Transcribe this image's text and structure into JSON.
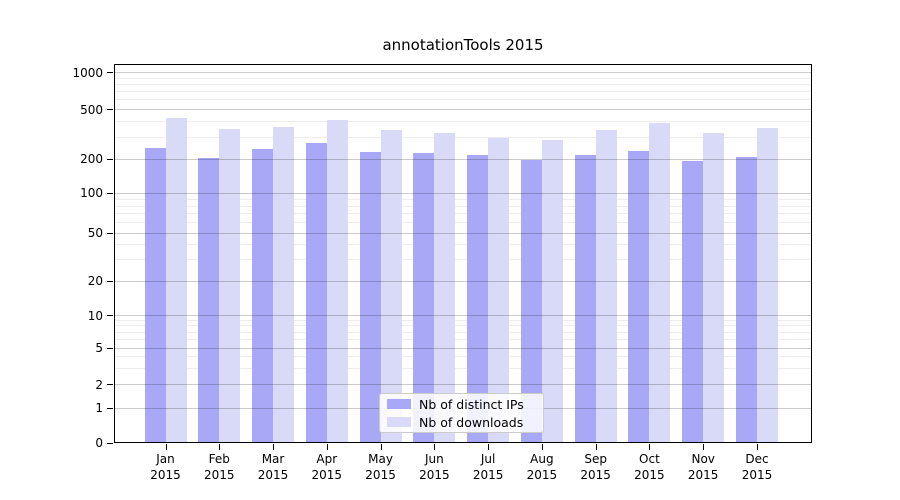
{
  "title": "annotationTools 2015",
  "colors": {
    "distinct_ips": "#a8a8f6",
    "downloads": "#d9d9f8",
    "axis": "#000000",
    "grid_major": "#cccccc",
    "grid_minor": "#ececec",
    "legend_border": "#cccccc"
  },
  "legend": {
    "items": [
      {
        "label": "Nb of distinct IPs",
        "series": "distinct_ips"
      },
      {
        "label": "Nb of downloads",
        "series": "downloads"
      }
    ]
  },
  "y_axis": {
    "ticks": [
      "0",
      "1",
      "2",
      "5",
      "10",
      "20",
      "50",
      "100",
      "200",
      "500",
      "1000"
    ]
  },
  "x_axis": {
    "months": [
      {
        "line1": "Jan",
        "line2": "2015"
      },
      {
        "line1": "Feb",
        "line2": "2015"
      },
      {
        "line1": "Mar",
        "line2": "2015"
      },
      {
        "line1": "Apr",
        "line2": "2015"
      },
      {
        "line1": "May",
        "line2": "2015"
      },
      {
        "line1": "Jun",
        "line2": "2015"
      },
      {
        "line1": "Jul",
        "line2": "2015"
      },
      {
        "line1": "Aug",
        "line2": "2015"
      },
      {
        "line1": "Sep",
        "line2": "2015"
      },
      {
        "line1": "Oct",
        "line2": "2015"
      },
      {
        "line1": "Nov",
        "line2": "2015"
      },
      {
        "line1": "Dec",
        "line2": "2015"
      }
    ]
  },
  "chart_data": {
    "type": "bar",
    "title": "annotationTools 2015",
    "categories": [
      "Jan 2015",
      "Feb 2015",
      "Mar 2015",
      "Apr 2015",
      "May 2015",
      "Jun 2015",
      "Jul 2015",
      "Aug 2015",
      "Sep 2015",
      "Oct 2015",
      "Nov 2015",
      "Dec 2015"
    ],
    "series": [
      {
        "name": "Nb of distinct IPs",
        "values": [
          245,
          205,
          240,
          270,
          230,
          225,
          215,
          197,
          215,
          235,
          194,
          210
        ]
      },
      {
        "name": "Nb of downloads",
        "values": [
          430,
          350,
          360,
          410,
          340,
          325,
          295,
          285,
          340,
          390,
          325,
          355
        ]
      }
    ],
    "yscale": "symlog",
    "yticks": [
      0,
      1,
      2,
      5,
      10,
      20,
      50,
      100,
      200,
      500,
      1000
    ],
    "minor_yticks": [
      3,
      4,
      6,
      7,
      8,
      9,
      30,
      40,
      60,
      70,
      80,
      90,
      300,
      400,
      600,
      700,
      800,
      900
    ],
    "ylim": [
      0,
      1180
    ],
    "xlabel": "",
    "ylabel": "",
    "grid": "on",
    "legend_position": "lower center"
  }
}
